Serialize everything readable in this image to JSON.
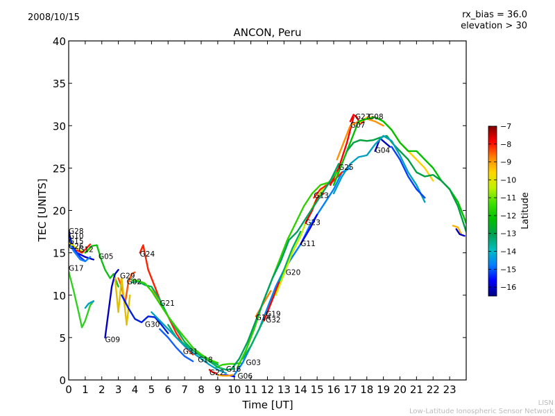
{
  "header": {
    "date": "2008/10/15",
    "rx_bias": "rx_bias = 36.0",
    "elevation": "elevation > 30"
  },
  "footer": {
    "short": "LISN",
    "long": "Low-Latitude Ionospheric Sensor Network"
  },
  "chart_data": {
    "type": "line",
    "title": "ANCON, Peru",
    "xlabel": "Time [UT]",
    "ylabel": "TEC [UNITS]",
    "xlim": [
      0,
      24
    ],
    "ylim": [
      0,
      40
    ],
    "xticks": [
      "0",
      "1",
      "2",
      "3",
      "4",
      "5",
      "6",
      "7",
      "8",
      "9",
      "10",
      "11",
      "12",
      "13",
      "14",
      "15",
      "16",
      "17",
      "18",
      "19",
      "20",
      "21",
      "22",
      "23"
    ],
    "yticks": [
      "0",
      "5",
      "10",
      "15",
      "20",
      "25",
      "30",
      "35",
      "40"
    ],
    "grid": false,
    "colorbar": {
      "label": "Latitude",
      "range": [
        -16.5,
        -7
      ],
      "ticks": [
        "−7",
        "−8",
        "−9",
        "−10",
        "−11",
        "−12",
        "−13",
        "−14",
        "−15",
        "−16"
      ],
      "colormap": [
        "#00007f",
        "#0000ff",
        "#007fff",
        "#00bfbf",
        "#00a050",
        "#00c000",
        "#40e000",
        "#c0f000",
        "#ffd700",
        "#ff8000",
        "#ff0000",
        "#7f0000"
      ]
    },
    "series": [
      {
        "name": "G28",
        "color": "#0000cc",
        "label_at": [
          0.0,
          17.6
        ],
        "x": [
          0.0,
          0.2,
          0.5,
          1.0,
          1.5
        ],
        "y": [
          17.5,
          16.0,
          15.0,
          14.5,
          14.2
        ]
      },
      {
        "name": "G10",
        "color": "#0033ff",
        "label_at": [
          0.0,
          17.0
        ],
        "x": [
          0.0,
          0.3,
          0.7,
          1.0
        ],
        "y": [
          17.0,
          15.5,
          14.5,
          14.0
        ]
      },
      {
        "name": "G15",
        "color": "#1080ff",
        "label_at": [
          0.0,
          16.4
        ],
        "x": [
          0.0,
          0.3,
          0.7,
          1.0,
          1.3
        ],
        "y": [
          16.2,
          15.2,
          14.2,
          14.0,
          14.5
        ]
      },
      {
        "name": "G26",
        "color": "#e0e000",
        "label_at": [
          0.0,
          15.8
        ],
        "x": [
          0.0,
          0.3,
          0.6,
          1.0,
          1.3
        ],
        "y": [
          16.2,
          15.8,
          15.4,
          15.0,
          15.5
        ]
      },
      {
        "name": "G12",
        "color": "#ff2000",
        "label_at": [
          0.6,
          15.4
        ],
        "x": [
          0.5,
          0.8,
          1.1,
          1.3
        ],
        "y": [
          15.3,
          15.0,
          15.6,
          16.0
        ]
      },
      {
        "name": "G17",
        "color": "#30d020",
        "label_at": [
          0.0,
          13.2
        ],
        "x": [
          0.0,
          0.3,
          0.6,
          0.8,
          1.0,
          1.3,
          1.5
        ],
        "y": [
          12.8,
          10.5,
          8.0,
          6.2,
          7.0,
          8.8,
          9.3
        ]
      },
      {
        "name": "G05",
        "color": "#10c010",
        "label_at": [
          1.8,
          14.6
        ],
        "x": [
          1.0,
          1.4,
          1.7,
          2.0,
          2.2,
          2.5,
          2.7,
          3.0
        ],
        "y": [
          15.0,
          15.8,
          15.9,
          14.0,
          13.0,
          12.0,
          12.5,
          11.0
        ]
      },
      {
        "name": "G09",
        "color": "#0000c0",
        "label_at": [
          2.2,
          4.8
        ],
        "x": [
          2.2,
          2.4,
          2.6,
          2.8,
          3.0
        ],
        "y": [
          5.0,
          8.0,
          11.0,
          12.5,
          13.0
        ]
      },
      {
        "name": "G29",
        "color": "#ff5000",
        "label_at": [
          3.1,
          12.3
        ],
        "x": [
          3.0,
          3.2,
          3.4,
          3.6,
          3.8,
          4.0
        ],
        "y": [
          12.0,
          11.0,
          9.0,
          11.5,
          12.5,
          12.7
        ]
      },
      {
        "name": "G02",
        "color": "#e0c000",
        "label_at": [
          3.5,
          11.6
        ],
        "x": [
          2.8,
          3.0,
          3.2,
          3.5,
          3.7
        ],
        "y": [
          12.0,
          8.0,
          12.0,
          6.5,
          10.0
        ]
      },
      {
        "name": "G24",
        "color": "#ff2000",
        "label_at": [
          4.3,
          14.9
        ],
        "x": [
          4.3,
          4.5,
          4.8,
          5.2,
          5.6,
          6.0,
          6.5,
          7.0,
          7.5
        ],
        "y": [
          15.0,
          15.9,
          13.0,
          11.0,
          9.0,
          7.5,
          5.5,
          4.0,
          3.0
        ]
      },
      {
        "name": "G21",
        "color": "#ffa000",
        "label_at": [
          5.5,
          9.1
        ],
        "x": [
          5.0,
          5.5,
          6.0,
          6.5,
          7.0,
          7.5,
          8.0,
          8.5
        ],
        "y": [
          11.0,
          9.0,
          7.5,
          6.0,
          4.5,
          3.5,
          2.8,
          2.2
        ]
      },
      {
        "name": "G30",
        "color": "#0020e0",
        "label_at": [
          4.6,
          6.6
        ],
        "x": [
          3.2,
          3.6,
          4.0,
          4.4,
          4.8,
          5.2,
          5.6,
          6.0
        ],
        "y": [
          10.0,
          8.5,
          7.2,
          6.8,
          7.5,
          7.4,
          6.5,
          5.5
        ]
      },
      {
        "name": "G31",
        "color": "#1060ff",
        "label_at": [
          6.9,
          3.4
        ],
        "x": [
          5.5,
          6.0,
          6.5,
          7.0,
          7.5
        ],
        "y": [
          6.0,
          5.0,
          3.8,
          2.8,
          2.2
        ]
      },
      {
        "name": "G18",
        "color": "#00b060",
        "label_at": [
          7.8,
          2.4
        ],
        "x": [
          6.0,
          6.5,
          7.0,
          7.5,
          8.0,
          8.5,
          9.0
        ],
        "y": [
          6.5,
          5.0,
          4.2,
          3.5,
          2.8,
          2.3,
          1.8
        ]
      },
      {
        "name": "G22",
        "color": "#ff0000",
        "label_at": [
          8.5,
          0.9
        ],
        "x": [
          8.5,
          8.7,
          8.9
        ],
        "y": [
          1.2,
          0.9,
          0.8
        ]
      },
      {
        "name": "G16",
        "color": "#30d000",
        "label_at": [
          9.5,
          1.3
        ],
        "x": [
          8.9,
          9.3,
          9.7,
          10.0,
          10.4
        ],
        "y": [
          1.5,
          1.8,
          1.9,
          1.9,
          2.0
        ]
      },
      {
        "name": "G06",
        "color": "#0000ff",
        "label_at": [
          10.2,
          0.5
        ],
        "x": [
          9.4,
          9.8,
          10.0
        ],
        "y": [
          0.6,
          0.5,
          0.4
        ]
      },
      {
        "name": "G03",
        "color": "#0080ff",
        "label_at": [
          10.7,
          2.1
        ],
        "x": [
          10.0,
          10.5,
          11.0,
          11.5,
          12.0,
          12.5,
          13.0,
          13.5,
          14.0,
          14.5,
          15.0,
          15.5,
          16.0,
          16.5,
          17.0
        ],
        "y": [
          0.6,
          2.0,
          4.0,
          6.0,
          8.5,
          11.0,
          13.0,
          14.5,
          16.0,
          18.0,
          19.5,
          21.0,
          22.5,
          24.5,
          25.0
        ]
      },
      {
        "name": "G14",
        "color": "#ff8000",
        "label_at": [
          11.3,
          7.4
        ],
        "x": [
          11.3,
          11.6,
          11.9,
          12.2
        ],
        "y": [
          7.5,
          8.5,
          9.5,
          10.5
        ]
      },
      {
        "name": "G19",
        "color": "#00b060",
        "label_at": [
          11.9,
          7.8
        ],
        "x": [
          10.5,
          11.0,
          11.5,
          12.0,
          12.5,
          13.0,
          13.5,
          14.0
        ],
        "y": [
          2.5,
          4.0,
          6.0,
          8.0,
          10.5,
          13.0,
          15.5,
          17.5
        ]
      },
      {
        "name": "G32",
        "color": "#ff0000",
        "label_at": [
          11.9,
          7.1
        ],
        "x": [
          11.8,
          12.1,
          12.4,
          12.7
        ],
        "y": [
          7.0,
          8.5,
          10.0,
          11.5
        ]
      },
      {
        "name": "G20",
        "color": "#c0f000",
        "label_at": [
          13.1,
          12.7
        ],
        "x": [
          12.5,
          13.0,
          13.5,
          14.0,
          14.5,
          15.0,
          15.5
        ],
        "y": [
          10.0,
          12.5,
          15.0,
          17.0,
          19.5,
          21.5,
          23.0
        ]
      },
      {
        "name": "G11",
        "color": "#0000ff",
        "label_at": [
          14.0,
          16.1
        ],
        "x": [
          14.0,
          14.3,
          14.6,
          15.0
        ],
        "y": [
          16.0,
          17.0,
          18.0,
          19.5
        ]
      },
      {
        "name": "G23",
        "color": "#ff0000",
        "label_at": [
          14.3,
          18.6
        ],
        "x": [
          14.3,
          14.7,
          15.0,
          15.4
        ],
        "y": [
          18.5,
          20.0,
          21.5,
          22.0
        ]
      },
      {
        "name": "G13",
        "color": "#ff2000",
        "label_at": [
          14.8,
          21.8
        ],
        "x": [
          14.8,
          15.2,
          15.6,
          16.0,
          16.5
        ],
        "y": [
          21.5,
          22.5,
          23.0,
          23.5,
          24.5
        ]
      },
      {
        "name": "G25",
        "color": "#ff0000",
        "label_at": [
          16.3,
          25.1
        ],
        "x": [
          15.8,
          16.3,
          16.8,
          17.2
        ],
        "y": [
          23.0,
          25.0,
          28.0,
          31.0
        ]
      },
      {
        "name": "G07",
        "color": "#ff9000",
        "label_at": [
          17.0,
          30.1
        ],
        "x": [
          16.2,
          16.6,
          17.0,
          17.5,
          18.0,
          18.5,
          19.0
        ],
        "y": [
          26.0,
          28.0,
          30.0,
          30.5,
          30.8,
          30.5,
          30.0
        ]
      },
      {
        "name": "G27",
        "color": "#ff0000",
        "label_at": [
          17.3,
          31.1
        ],
        "x": [
          17.0,
          17.2,
          17.4,
          17.6,
          17.8
        ],
        "y": [
          30.5,
          31.3,
          31.0,
          30.2,
          30.5
        ]
      },
      {
        "name": "G08",
        "color": "#ffd000",
        "label_at": [
          18.1,
          31.1
        ],
        "x": [
          17.5,
          18.0,
          18.5,
          19.0,
          19.5,
          20.0,
          20.5,
          21.0,
          21.5,
          22.0
        ],
        "y": [
          30.2,
          31.0,
          31.0,
          30.5,
          29.5,
          28.0,
          27.0,
          26.0,
          25.0,
          23.5
        ]
      },
      {
        "name": "G04",
        "color": "#0000c0",
        "label_at": [
          18.5,
          27.1
        ],
        "x": [
          18.5,
          18.8,
          19.1,
          19.4
        ],
        "y": [
          27.0,
          28.5,
          28.0,
          27.5
        ]
      },
      {
        "name": "trace-a",
        "color": "#00c000",
        "label_at": null,
        "x": [
          16.0,
          16.5,
          17.0,
          17.5,
          18.0,
          18.5,
          19.0,
          19.5,
          20.0,
          20.5,
          21.0,
          21.5,
          22.0,
          22.5,
          23.0,
          23.5,
          24.0
        ],
        "y": [
          23.0,
          25.5,
          28.0,
          30.5,
          30.8,
          31.0,
          30.5,
          29.5,
          28.0,
          27.0,
          27.0,
          26.0,
          25.0,
          23.5,
          22.5,
          21.0,
          18.5
        ]
      },
      {
        "name": "trace-b",
        "color": "#00a040",
        "label_at": null,
        "x": [
          16.8,
          17.2,
          17.6,
          18.0,
          18.4,
          18.8,
          19.2,
          19.6,
          20.0,
          20.5,
          21.0,
          21.5,
          22.0,
          22.5,
          23.0,
          23.5,
          24.0
        ],
        "y": [
          27.0,
          28.0,
          28.3,
          28.2,
          28.3,
          28.6,
          28.8,
          27.8,
          27.0,
          26.0,
          24.5,
          24.0,
          24.2,
          23.5,
          22.5,
          20.5,
          17.5
        ]
      },
      {
        "name": "trace-c",
        "color": "#00a0c0",
        "label_at": null,
        "x": [
          16.0,
          16.5,
          17.0,
          17.5,
          18.0,
          18.5,
          19.0,
          19.5,
          20.0,
          20.5,
          21.0,
          21.5
        ],
        "y": [
          22.0,
          24.0,
          25.5,
          26.3,
          26.5,
          27.8,
          28.8,
          28.2,
          26.5,
          24.5,
          23.0,
          21.0
        ]
      },
      {
        "name": "trace-d",
        "color": "#0040ff",
        "label_at": null,
        "x": [
          19.5,
          20.0,
          20.5,
          21.0,
          21.5
        ],
        "y": [
          27.5,
          26.0,
          24.0,
          22.5,
          21.5
        ]
      },
      {
        "name": "trace-e",
        "color": "#ffb000",
        "label_at": null,
        "x": [
          23.2,
          23.5,
          23.7
        ],
        "y": [
          18.2,
          18.0,
          17.2
        ]
      },
      {
        "name": "trace-f",
        "color": "#0000c0",
        "label_at": null,
        "x": [
          23.4,
          23.6,
          23.9
        ],
        "y": [
          17.8,
          17.2,
          17.0
        ]
      },
      {
        "name": "trace-g",
        "color": "#00a0c0",
        "label_at": null,
        "x": [
          1.0,
          1.2,
          1.5
        ],
        "y": [
          8.5,
          9.0,
          9.3
        ]
      },
      {
        "name": "trace-h",
        "color": "#00b060",
        "label_at": null,
        "x": [
          3.8,
          4.2,
          4.6,
          5.0,
          5.5,
          6.0,
          6.5,
          7.0,
          7.5,
          8.0,
          8.5,
          9.0,
          9.5,
          10.0
        ],
        "y": [
          11.5,
          11.6,
          11.2,
          11.0,
          9.5,
          7.5,
          6.0,
          4.5,
          3.5,
          2.8,
          2.2,
          1.5,
          1.2,
          1.3
        ]
      },
      {
        "name": "trace-i",
        "color": "#30d000",
        "label_at": null,
        "x": [
          3.8,
          4.2,
          4.6,
          5.0,
          5.5,
          6.0,
          6.5,
          7.0,
          7.5,
          8.0,
          8.5,
          9.0
        ],
        "y": [
          11.8,
          11.7,
          11.4,
          10.5,
          9.0,
          7.5,
          6.2,
          5.0,
          3.8,
          3.0,
          2.4,
          2.0
        ]
      },
      {
        "name": "trace-j",
        "color": "#00a0c0",
        "label_at": null,
        "x": [
          5.0,
          5.5,
          6.0,
          6.5,
          7.0,
          7.5,
          8.0,
          8.5,
          9.0,
          9.5
        ],
        "y": [
          8.0,
          7.0,
          6.0,
          5.0,
          4.0,
          3.2,
          2.5,
          1.8,
          1.2,
          0.8
        ]
      },
      {
        "name": "trace-k",
        "color": "#ffa000",
        "label_at": null,
        "x": [
          9.0,
          9.3,
          9.6,
          9.9
        ],
        "y": [
          0.6,
          0.5,
          0.5,
          0.6
        ]
      },
      {
        "name": "trace-l",
        "color": "#30d000",
        "label_at": null,
        "x": [
          10.2,
          10.7,
          11.2,
          11.7,
          12.2,
          12.7,
          13.2,
          13.7,
          14.2,
          14.7,
          15.2,
          15.7,
          16.2
        ],
        "y": [
          1.5,
          3.5,
          6.0,
          9.0,
          11.5,
          14.0,
          16.5,
          18.5,
          20.5,
          22.0,
          23.0,
          23.3,
          24.5
        ]
      },
      {
        "name": "trace-m",
        "color": "#00a060",
        "label_at": null,
        "x": [
          9.8,
          10.3,
          10.8,
          11.3,
          11.8,
          12.3,
          12.8,
          13.3,
          13.8,
          14.3,
          14.8,
          15.3,
          15.8,
          16.3
        ],
        "y": [
          1.2,
          2.5,
          4.5,
          7.0,
          9.5,
          12.0,
          14.0,
          16.5,
          17.5,
          19.0,
          20.5,
          22.0,
          23.5,
          25.5
        ]
      }
    ]
  }
}
